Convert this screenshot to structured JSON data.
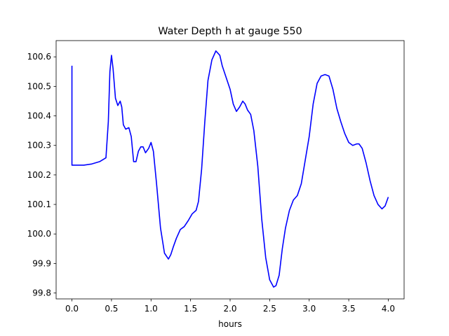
{
  "chart_data": {
    "type": "line",
    "title": "Water Depth h at gauge 550",
    "xlabel": "hours",
    "ylabel": "",
    "xlim": [
      -0.2,
      4.2
    ],
    "ylim": [
      99.78,
      100.655
    ],
    "grid": false,
    "legend": "none",
    "x_ticks": [
      0.0,
      0.5,
      1.0,
      1.5,
      2.0,
      2.5,
      3.0,
      3.5,
      4.0
    ],
    "x_tick_labels": [
      "0.0",
      "0.5",
      "1.0",
      "1.5",
      "2.0",
      "2.5",
      "3.0",
      "3.5",
      "4.0"
    ],
    "y_ticks": [
      99.8,
      99.9,
      100.0,
      100.1,
      100.2,
      100.3,
      100.4,
      100.5,
      100.6
    ],
    "y_tick_labels": [
      "99.8",
      "99.9",
      "100.0",
      "100.1",
      "100.2",
      "100.3",
      "100.4",
      "100.5",
      "100.6"
    ],
    "series": [
      {
        "color": "#0000ff",
        "x": [
          0.0,
          0.0,
          0.0,
          0.05,
          0.15,
          0.25,
          0.35,
          0.43,
          0.46,
          0.48,
          0.5,
          0.52,
          0.55,
          0.58,
          0.61,
          0.63,
          0.65,
          0.68,
          0.72,
          0.75,
          0.78,
          0.81,
          0.84,
          0.87,
          0.9,
          0.93,
          0.97,
          1.0,
          1.03,
          1.07,
          1.12,
          1.17,
          1.22,
          1.25,
          1.28,
          1.32,
          1.37,
          1.42,
          1.47,
          1.52,
          1.57,
          1.6,
          1.64,
          1.68,
          1.72,
          1.77,
          1.82,
          1.87,
          1.9,
          1.95,
          2.0,
          2.04,
          2.08,
          2.12,
          2.16,
          2.19,
          2.22,
          2.26,
          2.3,
          2.35,
          2.4,
          2.45,
          2.5,
          2.55,
          2.58,
          2.62,
          2.66,
          2.7,
          2.75,
          2.8,
          2.85,
          2.9,
          2.95,
          3.0,
          3.05,
          3.1,
          3.15,
          3.2,
          3.25,
          3.3,
          3.35,
          3.4,
          3.45,
          3.5,
          3.55,
          3.6,
          3.63,
          3.67,
          3.72,
          3.77,
          3.82,
          3.87,
          3.92,
          3.96,
          4.0
        ],
        "y": [
          100.57,
          100.4,
          100.233,
          100.233,
          100.233,
          100.237,
          100.245,
          100.258,
          100.38,
          100.55,
          100.605,
          100.56,
          100.46,
          100.435,
          100.45,
          100.43,
          100.37,
          100.355,
          100.36,
          100.33,
          100.245,
          100.245,
          100.28,
          100.295,
          100.295,
          100.275,
          100.29,
          100.31,
          100.28,
          100.17,
          100.02,
          99.935,
          99.915,
          99.93,
          99.955,
          99.985,
          100.015,
          100.025,
          100.045,
          100.068,
          100.08,
          100.11,
          100.22,
          100.38,
          100.52,
          100.59,
          100.62,
          100.605,
          100.57,
          100.53,
          100.49,
          100.44,
          100.415,
          100.43,
          100.45,
          100.44,
          100.42,
          100.405,
          100.35,
          100.23,
          100.05,
          99.92,
          99.845,
          99.82,
          99.825,
          99.86,
          99.95,
          100.02,
          100.08,
          100.115,
          100.13,
          100.17,
          100.25,
          100.33,
          100.44,
          100.51,
          100.535,
          100.54,
          100.535,
          100.49,
          100.425,
          100.38,
          100.34,
          100.31,
          100.3,
          100.305,
          100.305,
          100.29,
          100.24,
          100.18,
          100.13,
          100.1,
          100.085,
          100.095,
          100.125
        ]
      }
    ]
  }
}
